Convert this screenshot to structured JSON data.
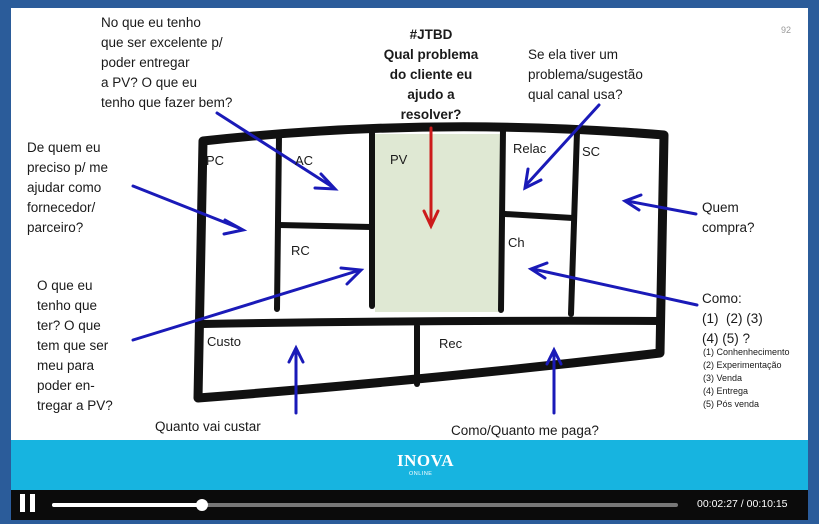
{
  "slide": {
    "number": "92",
    "canvas_labels": {
      "pc": "PC",
      "ac": "AC",
      "pv": "PV",
      "relac": "Relac",
      "sc": "SC",
      "rc": "RC",
      "ch": "Ch",
      "custo": "Custo",
      "rec": "Rec"
    },
    "annotations": {
      "jtbd_title": "#JTBD\nQual problema\ndo cliente eu\najudo a\nresolver?",
      "top_left": "No que eu tenho\nque ser excelente p/\npoder entregar\na PV? O que eu\ntenho que fazer bem?",
      "top_right": "Se ela tiver um\nproblema/sugestão\nqual canal usa?",
      "left_upper": "De quem eu\npreciso p/ me\najudar como\nfornecedor/\nparceiro?",
      "left_lower": "O que eu\ntenho que\nter? O que\ntem que ser\nmeu para\npoder en-\ntregar a PV?",
      "right_who": "Quem\ncompra?",
      "right_how": "Como:\n(1)  (2) (3)\n(4) (5) ?",
      "how_list": "(1) Conhenhecimento\n(2) Experimentação\n(3) Venda\n(4) Entrega\n(5) Pós venda",
      "bottom_left": "Quanto vai custar\n[PC]+[AC]+[RC]?\nImplantação + custo mensal?",
      "bottom_right": "Como/Quanto me paga?"
    },
    "logo": {
      "brand": "INOVA",
      "sub": "ONLINE"
    },
    "colors": {
      "pv_fill": "#dfe8d3",
      "arrow_blue": "#1a1ab8",
      "arrow_red": "#cc1b1b",
      "footer": "#17b4e0"
    }
  },
  "player": {
    "state": "paused",
    "current_time": "00:02:27",
    "total_time": "00:10:15",
    "progress": 0.239
  }
}
